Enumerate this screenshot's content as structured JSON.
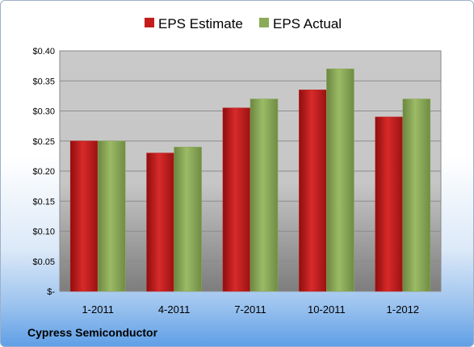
{
  "chart_data": {
    "type": "bar",
    "title": "",
    "xlabel": "",
    "ylabel": "",
    "categories": [
      "1-2011",
      "4-2011",
      "7-2011",
      "10-2011",
      "1-2012"
    ],
    "series": [
      {
        "name": "EPS Estimate",
        "color": "#c41c1c",
        "values": [
          0.25,
          0.23,
          0.305,
          0.335,
          0.29
        ]
      },
      {
        "name": "EPS Actual",
        "color": "#8cab58",
        "values": [
          0.25,
          0.24,
          0.32,
          0.37,
          0.32
        ]
      }
    ],
    "ylim": [
      0,
      0.4
    ],
    "yticks": [
      0,
      0.05,
      0.1,
      0.15,
      0.2,
      0.25,
      0.3,
      0.35,
      0.4
    ],
    "ytick_labels": [
      "$-",
      "$0.05",
      "$0.10",
      "$0.15",
      "$0.20",
      "$0.25",
      "$0.30",
      "$0.35",
      "$0.40"
    ],
    "grid": true,
    "legend_position": "top"
  },
  "footer": {
    "company": "Cypress Semiconductor"
  }
}
